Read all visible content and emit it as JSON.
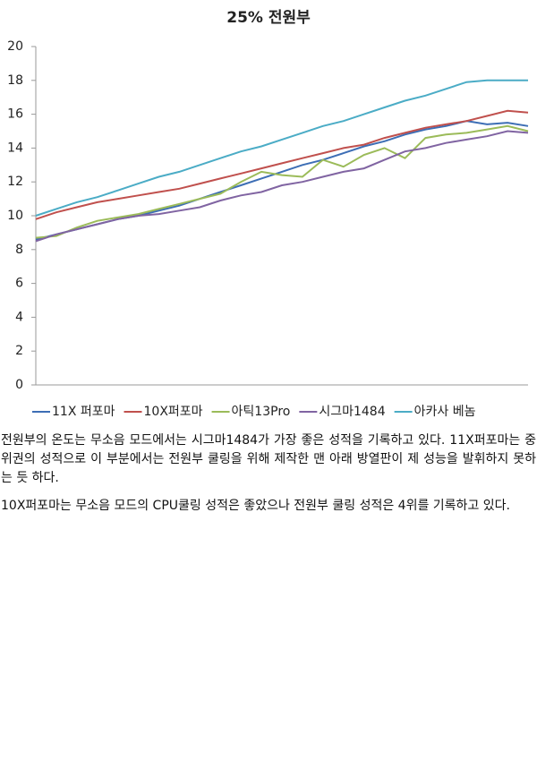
{
  "chart_data": {
    "type": "line",
    "title": "25% 전원부",
    "categories": [
      null,
      null,
      null,
      null,
      null,
      null,
      null,
      null,
      null,
      null,
      null,
      null,
      null,
      null,
      null,
      null,
      null,
      null,
      null,
      null,
      null,
      null,
      null,
      null,
      null
    ],
    "series": [
      {
        "name": "11X 퍼포마",
        "color": "#3d6eb5",
        "values": [
          8.6,
          8.9,
          9.2,
          9.5,
          9.8,
          10.0,
          10.3,
          10.6,
          11.0,
          11.4,
          11.8,
          12.2,
          12.6,
          13.0,
          13.3,
          13.7,
          14.1,
          14.4,
          14.8,
          15.1,
          15.3,
          15.6,
          15.4,
          15.5,
          15.3
        ]
      },
      {
        "name": "10X퍼포마",
        "color": "#c0504d",
        "values": [
          9.8,
          10.2,
          10.5,
          10.8,
          11.0,
          11.2,
          11.4,
          11.6,
          11.9,
          12.2,
          12.5,
          12.8,
          13.1,
          13.4,
          13.7,
          14.0,
          14.2,
          14.6,
          14.9,
          15.2,
          15.4,
          15.6,
          15.9,
          16.2,
          16.1
        ]
      },
      {
        "name": "아틱13Pro",
        "color": "#9bbb59",
        "values": [
          8.7,
          8.8,
          9.3,
          9.7,
          9.9,
          10.1,
          10.4,
          10.7,
          11.0,
          11.3,
          12.0,
          12.6,
          12.4,
          12.3,
          13.3,
          12.9,
          13.6,
          14.0,
          13.4,
          14.6,
          14.8,
          14.9,
          15.1,
          15.3,
          15.0
        ]
      },
      {
        "name": "시그마1484",
        "color": "#8064a2",
        "values": [
          8.5,
          8.9,
          9.2,
          9.5,
          9.8,
          10.0,
          10.1,
          10.3,
          10.5,
          10.9,
          11.2,
          11.4,
          11.8,
          12.0,
          12.3,
          12.6,
          12.8,
          13.3,
          13.8,
          14.0,
          14.3,
          14.5,
          14.7,
          15.0,
          14.9
        ]
      },
      {
        "name": "아카사 베놈",
        "color": "#4bacc6",
        "values": [
          10.0,
          10.4,
          10.8,
          11.1,
          11.5,
          11.9,
          12.3,
          12.6,
          13.0,
          13.4,
          13.8,
          14.1,
          14.5,
          14.9,
          15.3,
          15.6,
          16.0,
          16.4,
          16.8,
          17.1,
          17.5,
          17.9,
          18.0,
          18.0,
          18.0
        ]
      }
    ],
    "ylim": [
      0,
      20
    ],
    "yticks": [
      0,
      2,
      4,
      6,
      8,
      10,
      12,
      14,
      16,
      18,
      20
    ],
    "grid": false,
    "legend": "bottom"
  },
  "paragraphs": [
    "전원부의 온도는 무소음 모드에서는 시그마1484가 가장 좋은 성적을 기록하고 있다. 11X퍼포마는 중위권의 성적으로 이 부분에서는 전원부 쿨링을 위해 제작한 맨 아래 방열판이 제 성능을 발휘하지 못하는 듯 하다.",
    "10X퍼포마는 무소음 모드의 CPU쿨링 성적은 좋았으나 전원부 쿨링 성적은 4위를 기록하고 있다."
  ]
}
